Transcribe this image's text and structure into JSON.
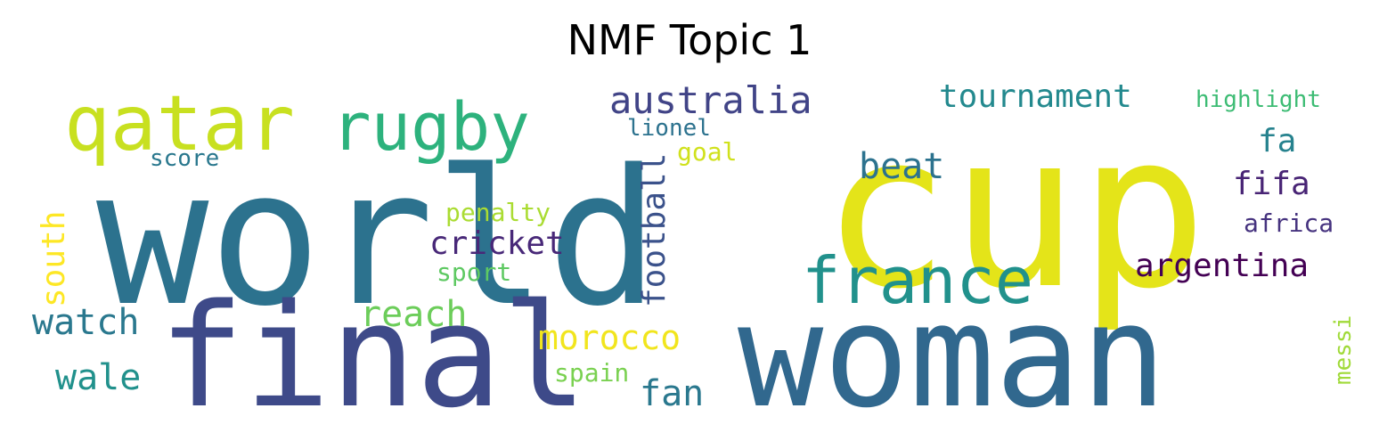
{
  "chart_data": {
    "type": "wordcloud",
    "title": "NMF Topic 1",
    "words": [
      {
        "text": "world",
        "color": "#2c728e"
      },
      {
        "text": "cup",
        "color": "#e4e419"
      },
      {
        "text": "woman",
        "color": "#31688e"
      },
      {
        "text": "final",
        "color": "#3e4a89"
      },
      {
        "text": "qatar",
        "color": "#c8e020"
      },
      {
        "text": "rugby",
        "color": "#2db27d"
      },
      {
        "text": "france",
        "color": "#21918c"
      },
      {
        "text": "australia",
        "color": "#414487"
      },
      {
        "text": "tournament",
        "color": "#23898e"
      },
      {
        "text": "highlight",
        "color": "#3dbc74"
      },
      {
        "text": "lionel",
        "color": "#2c728e"
      },
      {
        "text": "goal",
        "color": "#d0e11c"
      },
      {
        "text": "score",
        "color": "#2a788e"
      },
      {
        "text": "beat",
        "color": "#2c728e"
      },
      {
        "text": "fa",
        "color": "#26828e"
      },
      {
        "text": "fifa",
        "color": "#482475"
      },
      {
        "text": "football",
        "color": "#3b528b"
      },
      {
        "text": "penalty",
        "color": "#aadc32"
      },
      {
        "text": "south",
        "color": "#fde725"
      },
      {
        "text": "cricket",
        "color": "#482878"
      },
      {
        "text": "africa",
        "color": "#46337f"
      },
      {
        "text": "sport",
        "color": "#5ec962"
      },
      {
        "text": "argentina",
        "color": "#440154"
      },
      {
        "text": "watch",
        "color": "#2a788e"
      },
      {
        "text": "reach",
        "color": "#6ccd5a"
      },
      {
        "text": "morocco",
        "color": "#f1e51d"
      },
      {
        "text": "messi",
        "color": "#a0da39"
      },
      {
        "text": "wale",
        "color": "#21918c"
      },
      {
        "text": "spain",
        "color": "#7ad151"
      },
      {
        "text": "fan",
        "color": "#2a788e"
      }
    ]
  }
}
